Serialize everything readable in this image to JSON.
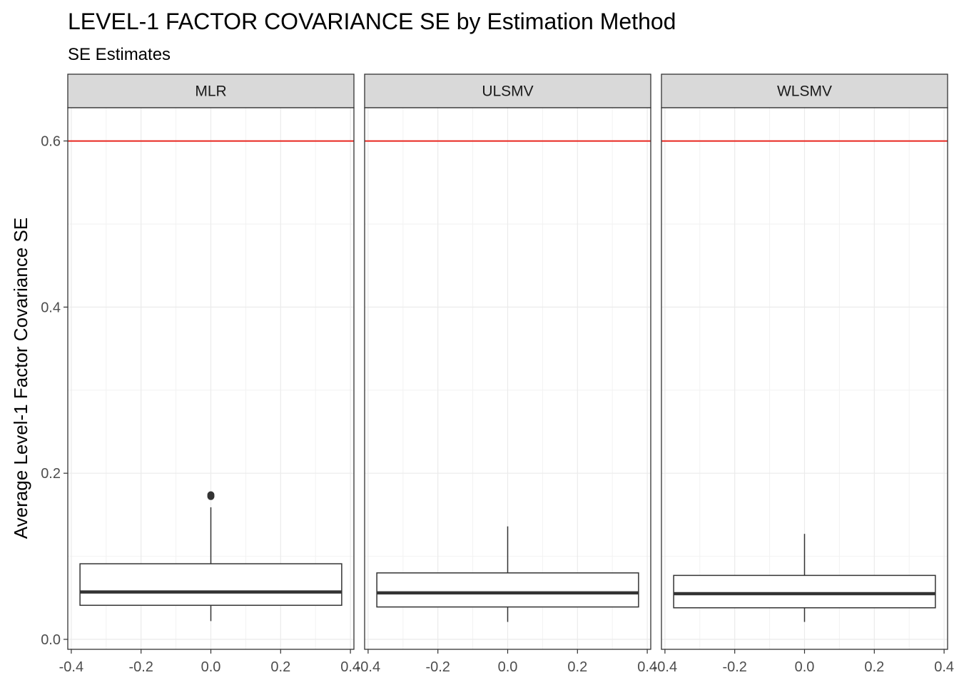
{
  "chart_data": {
    "type": "boxplot",
    "title": "LEVEL-1 FACTOR COVARIANCE SE by Estimation Method",
    "subtitle": "SE Estimates",
    "ylabel": "Average Level-1 Factor Covariance SE",
    "xlabel": "",
    "ylim": [
      -0.012,
      0.64
    ],
    "xlim": [
      -0.41,
      0.41
    ],
    "y_ticks": [
      0.0,
      0.2,
      0.4,
      0.6
    ],
    "y_tick_labels": [
      "0.0",
      "0.2",
      "0.4",
      "0.6"
    ],
    "x_ticks": [
      -0.4,
      -0.2,
      0.0,
      0.2,
      0.4
    ],
    "x_tick_labels": [
      "-0.4",
      "-0.2",
      "0.0",
      "0.2",
      "0.4"
    ],
    "reference_line": {
      "y": 0.6,
      "color": "#e8261f"
    },
    "grid": true,
    "panels": [
      {
        "label": "MLR",
        "whisker_low": 0.022,
        "q1": 0.041,
        "median": 0.057,
        "q3": 0.091,
        "whisker_high": 0.159,
        "outliers": [
          0.172,
          0.174
        ]
      },
      {
        "label": "ULSMV",
        "whisker_low": 0.021,
        "q1": 0.039,
        "median": 0.056,
        "q3": 0.08,
        "whisker_high": 0.136,
        "outliers": []
      },
      {
        "label": "WLSMV",
        "whisker_low": 0.021,
        "q1": 0.038,
        "median": 0.055,
        "q3": 0.077,
        "whisker_high": 0.127,
        "outliers": []
      }
    ],
    "box_width": 0.75
  }
}
